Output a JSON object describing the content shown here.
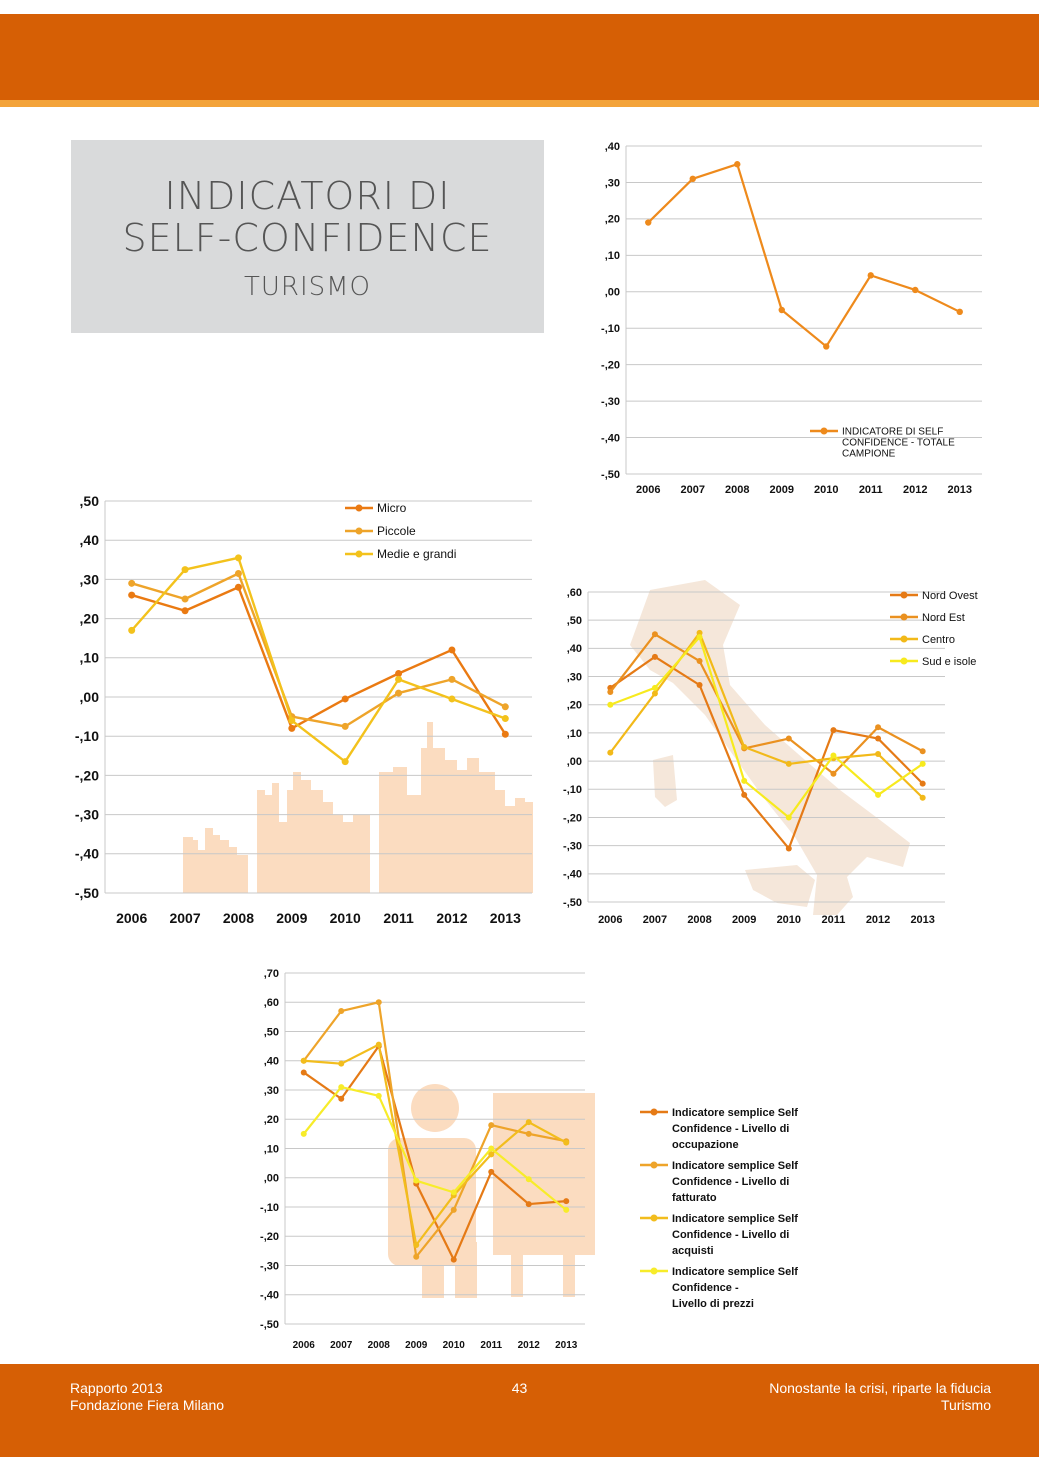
{
  "page": {
    "title_line1": "INDICATORI DI",
    "title_line2": "SELF-CONFIDENCE",
    "title_line3": "TURISMO",
    "footer_left_1": "Rapporto 2013",
    "footer_left_2": "Fondazione Fiera Milano",
    "page_number": "43",
    "footer_right_1": "Nonostante la crisi, riparte la fiducia",
    "footer_right_2": "Turismo",
    "colors": {
      "band": "#d65f05",
      "stripe": "#f3a33a",
      "title_box": "#d9dadb"
    }
  },
  "chart_data": [
    {
      "id": "total",
      "type": "line",
      "title": "",
      "categories": [
        "2006",
        "2007",
        "2008",
        "2009",
        "2010",
        "2011",
        "2012",
        "2013"
      ],
      "y_ticks": [
        ",40",
        ",30",
        ",20",
        ",10",
        ",00",
        "-,10",
        "-,20",
        "-,30",
        "-,40",
        "-,50"
      ],
      "ylim": [
        -0.5,
        0.4
      ],
      "series": [
        {
          "name": "INDICATORE DI SELF CONFIDENCE - TOTALE CAMPIONE",
          "legend_lines": [
            "INDICATORE DI SELF",
            "CONFIDENCE - TOTALE",
            "CAMPIONE"
          ],
          "color": "#ee8a1c",
          "values": [
            0.19,
            0.31,
            0.35,
            -0.05,
            -0.15,
            0.045,
            0.005,
            -0.055
          ]
        }
      ]
    },
    {
      "id": "size",
      "type": "line",
      "title": "",
      "categories": [
        "2006",
        "2007",
        "2008",
        "2009",
        "2010",
        "2011",
        "2012",
        "2013"
      ],
      "y_ticks": [
        ",50",
        ",40",
        ",30",
        ",20",
        ",10",
        ",00",
        "-,10",
        "-,20",
        "-,30",
        "-,40",
        "-,50"
      ],
      "ylim": [
        -0.5,
        0.5
      ],
      "series": [
        {
          "name": "Micro",
          "color": "#ea7a12",
          "values": [
            0.26,
            0.22,
            0.28,
            -0.08,
            -0.005,
            0.06,
            0.12,
            -0.095
          ]
        },
        {
          "name": "Piccole",
          "color": "#eea42a",
          "values": [
            0.29,
            0.25,
            0.315,
            -0.05,
            -0.075,
            0.01,
            0.045,
            -0.025
          ]
        },
        {
          "name": "Medie e grandi",
          "color": "#f3c21c",
          "values": [
            0.17,
            0.325,
            0.355,
            -0.06,
            -0.165,
            0.045,
            -0.005,
            -0.055
          ]
        }
      ]
    },
    {
      "id": "region",
      "type": "line",
      "title": "",
      "categories": [
        "2006",
        "2007",
        "2008",
        "2009",
        "2010",
        "2011",
        "2012",
        "2013"
      ],
      "y_ticks": [
        ",60",
        ",50",
        ",40",
        ",30",
        ",20",
        ",10",
        ",00",
        "-,10",
        "-,20",
        "-,30",
        "-,40",
        "-,50"
      ],
      "ylim": [
        -0.5,
        0.6
      ],
      "series": [
        {
          "name": "Nord Ovest",
          "color": "#e57a16",
          "values": [
            0.26,
            0.37,
            0.27,
            -0.12,
            -0.31,
            0.11,
            0.08,
            -0.08
          ]
        },
        {
          "name": "Nord Est",
          "color": "#ea9120",
          "values": [
            0.245,
            0.45,
            0.355,
            0.045,
            0.08,
            -0.045,
            0.12,
            0.035
          ]
        },
        {
          "name": "Centro",
          "color": "#f2b919",
          "values": [
            0.03,
            0.24,
            0.455,
            0.05,
            -0.01,
            0.01,
            0.025,
            -0.13
          ]
        },
        {
          "name": "Sud e isole",
          "color": "#f7ea1e",
          "values": [
            0.2,
            0.26,
            0.44,
            -0.07,
            -0.2,
            0.02,
            -0.12,
            -0.01
          ]
        }
      ]
    },
    {
      "id": "simple",
      "type": "line",
      "title": "",
      "categories": [
        "2006",
        "2007",
        "2008",
        "2009",
        "2010",
        "2011",
        "2012",
        "2013"
      ],
      "y_ticks": [
        ",70",
        ",60",
        ",50",
        ",40",
        ",30",
        ",20",
        ",10",
        ",00",
        "-,10",
        "-,20",
        "-,30",
        "-,40",
        "-,50"
      ],
      "ylim": [
        -0.5,
        0.7
      ],
      "series": [
        {
          "name": "Indicatore semplice Self Confidence - Livello di occupazione",
          "legend_lines": [
            "Indicatore semplice Self",
            "Confidence - Livello di",
            "occupazione"
          ],
          "color": "#e57a16",
          "values": [
            0.36,
            0.27,
            0.45,
            -0.02,
            -0.28,
            0.02,
            -0.09,
            -0.08
          ]
        },
        {
          "name": "Indicatore semplice Self Confidence - Livello di fatturato",
          "legend_lines": [
            "Indicatore semplice Self",
            "Confidence - Livello di",
            "fatturato"
          ],
          "color": "#eea42a",
          "values": [
            0.4,
            0.57,
            0.6,
            -0.27,
            -0.11,
            0.18,
            0.15,
            0.125
          ]
        },
        {
          "name": "Indicatore semplice Self Confidence - Livello di acquisti",
          "legend_lines": [
            "Indicatore semplice Self",
            "Confidence - Livello di",
            "acquisti"
          ],
          "color": "#f2bd1d",
          "values": [
            0.4,
            0.39,
            0.455,
            -0.23,
            -0.06,
            0.08,
            0.19,
            0.12
          ]
        },
        {
          "name": "Indicatore semplice Self Confidence - Livello di prezzi",
          "legend_lines": [
            "Indicatore semplice Self",
            "Confidence -",
            "Livello di prezzi"
          ],
          "color": "#f7ec2a",
          "values": [
            0.15,
            0.31,
            0.28,
            -0.01,
            -0.05,
            0.1,
            -0.005,
            -0.11
          ]
        }
      ]
    }
  ]
}
